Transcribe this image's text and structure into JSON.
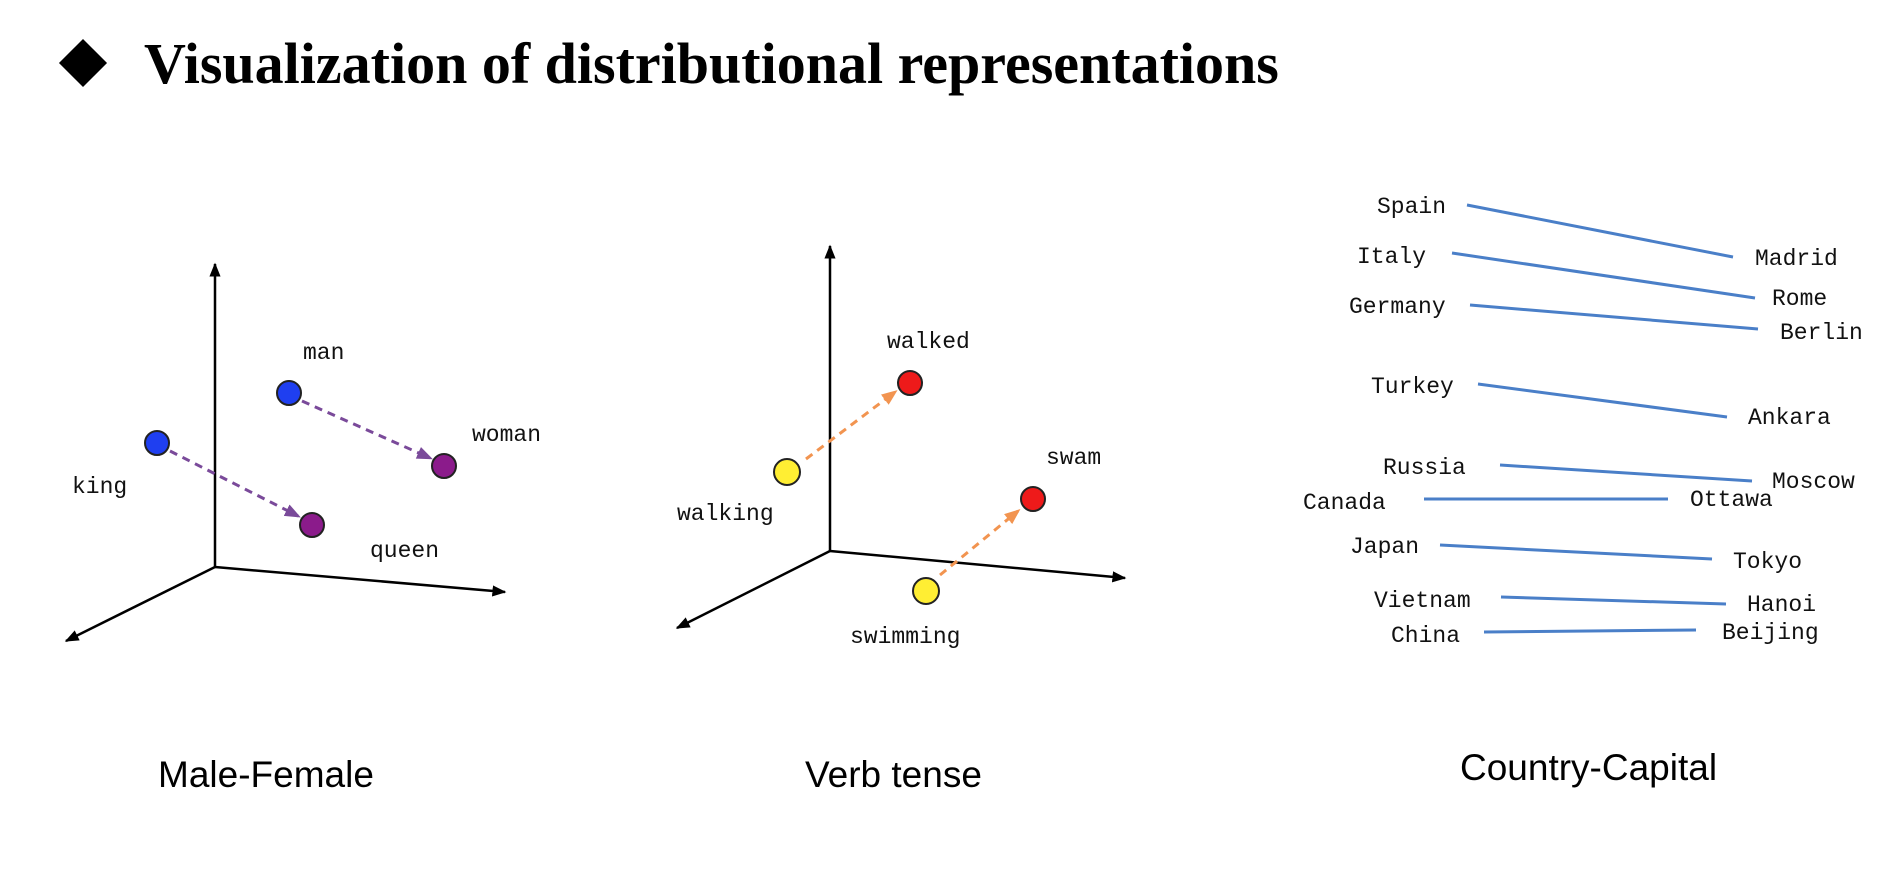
{
  "title": "Visualization of distributional representations",
  "colors": {
    "blue_point": "#1f3ff0",
    "purple_point": "#8b1b8b",
    "yellow_point": "#ffee33",
    "red_point": "#ee1a1a",
    "purple_arrow": "#7a4a9a",
    "orange_arrow": "#f29450",
    "capital_line": "#4a7fc8"
  },
  "panels": {
    "male_female": {
      "caption": "Male-Female",
      "words": {
        "man": "man",
        "woman": "woman",
        "king": "king",
        "queen": "queen"
      }
    },
    "verb_tense": {
      "caption": "Verb tense",
      "words": {
        "walked": "walked",
        "walking": "walking",
        "swam": "swam",
        "swimming": "swimming"
      }
    },
    "country_capital": {
      "caption": "Country-Capital",
      "pairs": [
        {
          "country": "Spain",
          "capital": "Madrid"
        },
        {
          "country": "Italy",
          "capital": "Rome"
        },
        {
          "country": "Germany",
          "capital": "Berlin"
        },
        {
          "country": "Turkey",
          "capital": "Ankara"
        },
        {
          "country": "Russia",
          "capital": "Moscow"
        },
        {
          "country": "Canada",
          "capital": "Ottawa"
        },
        {
          "country": "Japan",
          "capital": "Tokyo"
        },
        {
          "country": "Vietnam",
          "capital": "Hanoi"
        },
        {
          "country": "China",
          "capital": "Beijing"
        }
      ]
    }
  }
}
